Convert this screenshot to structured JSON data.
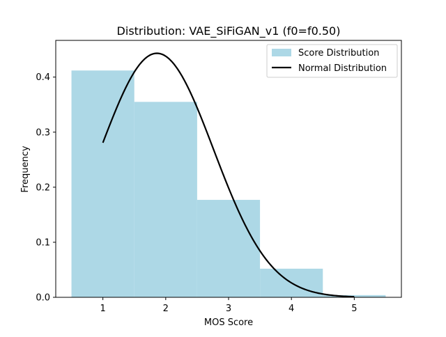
{
  "chart_data": {
    "type": "bar",
    "title": "Distribution: VAE_SiFiGAN_v1 (f0=f0.50)",
    "xlabel": "MOS Score",
    "ylabel": "Frequency",
    "xlim": [
      0.25,
      5.75
    ],
    "ylim": [
      0,
      0.4667
    ],
    "xticks": [
      1,
      2,
      3,
      4,
      5
    ],
    "yticks": [
      0.0,
      0.1,
      0.2,
      0.3,
      0.4
    ],
    "xtick_labels": [
      "1",
      "2",
      "3",
      "4",
      "5"
    ],
    "ytick_labels": [
      "0.0",
      "0.1",
      "0.2",
      "0.3",
      "0.4"
    ],
    "grid": false,
    "legend_position": "top-right",
    "series": [
      {
        "name": "Score Distribution",
        "kind": "histogram",
        "color": "#add8e6",
        "bins": [
          {
            "from": 0.5,
            "to": 1.5,
            "value": 0.412
          },
          {
            "from": 1.5,
            "to": 2.5,
            "value": 0.355
          },
          {
            "from": 2.5,
            "to": 3.5,
            "value": 0.177
          },
          {
            "from": 3.5,
            "to": 4.5,
            "value": 0.052
          },
          {
            "from": 4.5,
            "to": 5.5,
            "value": 0.004
          }
        ]
      },
      {
        "name": "Normal Distribution",
        "kind": "line",
        "color": "#000000",
        "x_range": [
          1,
          5
        ],
        "mean": 1.86,
        "std": 0.9
      }
    ]
  }
}
